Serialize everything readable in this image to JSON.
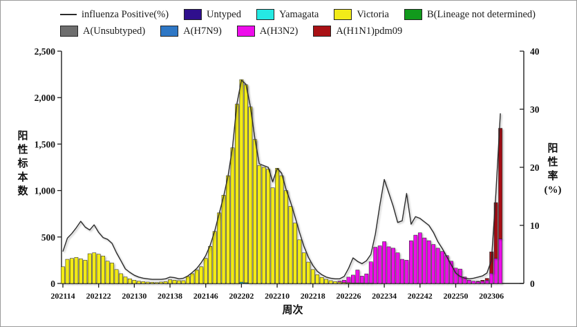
{
  "legend": {
    "items": [
      {
        "row": 1,
        "key": "influenza-positive",
        "label": "influenza Positive(%)",
        "color": "#2a2a2a",
        "swatch": "line"
      },
      {
        "row": 1,
        "key": "untyped",
        "label": "Untyped",
        "color": "#2f0f8d",
        "swatch": "box"
      },
      {
        "row": 1,
        "key": "yamagata",
        "label": "Yamagata",
        "color": "#25e9e3",
        "swatch": "box"
      },
      {
        "row": 1,
        "key": "victoria",
        "label": "Victoria",
        "color": "#f2eb19",
        "swatch": "box"
      },
      {
        "row": 1,
        "key": "b-lineage-not-determined",
        "label": "B(Lineage not determined)",
        "color": "#119a1c",
        "swatch": "box"
      },
      {
        "row": 2,
        "key": "a-unsubtyped",
        "label": "A(Unsubtyped)",
        "color": "#6e6e6e",
        "swatch": "box"
      },
      {
        "row": 2,
        "key": "a-h7n9",
        "label": "A(H7N9)",
        "color": "#2e77c5",
        "swatch": "box"
      },
      {
        "row": 2,
        "key": "a-h3n2",
        "label": "A(H3N2)",
        "color": "#ee0deb",
        "swatch": "box"
      },
      {
        "row": 2,
        "key": "a-h1n1pdm09",
        "label": "A(H1N1)pdm09",
        "color": "#a91115",
        "swatch": "box"
      }
    ]
  },
  "chart_data": {
    "type": "combo-stacked-bar-line",
    "x_axis_title": "周次",
    "left_axis": {
      "title": "阳性标本数",
      "max": 2500,
      "ticks": [
        {
          "value": 0,
          "label": "0"
        },
        {
          "value": 500,
          "label": "500"
        },
        {
          "value": 1000,
          "label": "1,000"
        },
        {
          "value": 1500,
          "label": "1,500"
        },
        {
          "value": 2000,
          "label": "2,000"
        },
        {
          "value": 2500,
          "label": "2,500"
        }
      ]
    },
    "right_axis": {
      "title": "阳性率",
      "unit": "(%)",
      "max": 40,
      "ticks": [
        {
          "value": 0,
          "label": "0"
        },
        {
          "value": 10,
          "label": "10"
        },
        {
          "value": 20,
          "label": "20"
        },
        {
          "value": 30,
          "label": "30"
        },
        {
          "value": 40,
          "label": "40"
        }
      ]
    },
    "x_ticks": [
      {
        "week_index": 0,
        "label": "202114"
      },
      {
        "week_index": 8,
        "label": "202122"
      },
      {
        "week_index": 16,
        "label": "202130"
      },
      {
        "week_index": 24,
        "label": "202138"
      },
      {
        "week_index": 32,
        "label": "202146"
      },
      {
        "week_index": 40,
        "label": "202202"
      },
      {
        "week_index": 48,
        "label": "202210"
      },
      {
        "week_index": 56,
        "label": "202218"
      },
      {
        "week_index": 64,
        "label": "202226"
      },
      {
        "week_index": 72,
        "label": "202234"
      },
      {
        "week_index": 80,
        "label": "202242"
      },
      {
        "week_index": 88,
        "label": "202250"
      },
      {
        "week_index": 96,
        "label": "202306"
      }
    ],
    "weeks": [
      "202114",
      "202115",
      "202116",
      "202117",
      "202118",
      "202119",
      "202120",
      "202121",
      "202122",
      "202123",
      "202124",
      "202125",
      "202126",
      "202127",
      "202128",
      "202129",
      "202130",
      "202131",
      "202132",
      "202133",
      "202134",
      "202135",
      "202136",
      "202137",
      "202138",
      "202139",
      "202140",
      "202141",
      "202142",
      "202143",
      "202144",
      "202145",
      "202146",
      "202147",
      "202148",
      "202149",
      "202150",
      "202151",
      "202152",
      "202201",
      "202202",
      "202203",
      "202204",
      "202205",
      "202206",
      "202207",
      "202208",
      "202209",
      "202210",
      "202211",
      "202212",
      "202213",
      "202214",
      "202215",
      "202216",
      "202217",
      "202218",
      "202219",
      "202220",
      "202221",
      "202222",
      "202223",
      "202224",
      "202225",
      "202226",
      "202227",
      "202228",
      "202229",
      "202230",
      "202231",
      "202232",
      "202233",
      "202234",
      "202235",
      "202236",
      "202237",
      "202238",
      "202239",
      "202240",
      "202241",
      "202242",
      "202243",
      "202244",
      "202245",
      "202246",
      "202247",
      "202248",
      "202249",
      "202250",
      "202251",
      "202252",
      "202301",
      "202302",
      "202303",
      "202304",
      "202305",
      "202306",
      "202307",
      "202308"
    ],
    "bar_series": [
      {
        "name": "Yamagata",
        "key": "yamagata",
        "color": "#25e9e3",
        "values": [
          0,
          0,
          0,
          0,
          0,
          0,
          0,
          0,
          0,
          0,
          0,
          0,
          0,
          0,
          0,
          0,
          0,
          0,
          0,
          0,
          0,
          0,
          0,
          0,
          0,
          0,
          0,
          0,
          0,
          0,
          0,
          0,
          0,
          0,
          0,
          0,
          0,
          0,
          0,
          0,
          14,
          8,
          0,
          0,
          0,
          0,
          0,
          0,
          0,
          0,
          0,
          0,
          0,
          0,
          0,
          0,
          0,
          0,
          0,
          0,
          0,
          0,
          0,
          0,
          0,
          0,
          0,
          0,
          0,
          0,
          0,
          0,
          0,
          0,
          0,
          0,
          0,
          0,
          0,
          0,
          0,
          0,
          0,
          0,
          0,
          0,
          0,
          0,
          0,
          0,
          0,
          0,
          0,
          0,
          0,
          0,
          0,
          0,
          0
        ]
      },
      {
        "name": "Victoria",
        "key": "victoria",
        "color": "#f2eb19",
        "values": [
          180,
          260,
          270,
          280,
          265,
          250,
          320,
          330,
          315,
          295,
          240,
          220,
          150,
          105,
          70,
          50,
          35,
          25,
          20,
          15,
          12,
          10,
          15,
          20,
          40,
          35,
          30,
          30,
          75,
          105,
          145,
          180,
          270,
          400,
          560,
          760,
          950,
          1160,
          1460,
          1930,
          2180,
          2130,
          1900,
          1550,
          1270,
          1250,
          1230,
          1030,
          1240,
          1160,
          1000,
          830,
          650,
          470,
          330,
          230,
          150,
          95,
          65,
          45,
          30,
          20,
          15,
          10,
          8,
          5,
          5,
          4,
          3,
          3,
          0,
          0,
          0,
          0,
          0,
          0,
          0,
          0,
          0,
          0,
          0,
          0,
          0,
          0,
          0,
          0,
          0,
          0,
          0,
          0,
          0,
          0,
          0,
          0,
          0,
          0,
          0,
          0,
          0
        ]
      },
      {
        "name": "A(H3N2)",
        "key": "a-h3n2",
        "color": "#ee0deb",
        "values": [
          0,
          0,
          0,
          0,
          0,
          0,
          0,
          0,
          0,
          0,
          0,
          0,
          0,
          0,
          0,
          0,
          0,
          0,
          0,
          0,
          0,
          0,
          0,
          0,
          0,
          0,
          0,
          0,
          0,
          0,
          0,
          0,
          0,
          0,
          0,
          0,
          0,
          0,
          0,
          0,
          0,
          0,
          0,
          0,
          0,
          0,
          0,
          0,
          0,
          0,
          0,
          0,
          0,
          0,
          0,
          0,
          0,
          0,
          0,
          0,
          0,
          0,
          10,
          25,
          60,
          85,
          140,
          75,
          100,
          230,
          390,
          405,
          450,
          395,
          380,
          330,
          260,
          250,
          460,
          520,
          545,
          490,
          460,
          420,
          380,
          345,
          300,
          240,
          165,
          155,
          70,
          35,
          25,
          20,
          25,
          35,
          110,
          270,
          480
        ]
      },
      {
        "name": "A(H1N1)pdm09",
        "key": "a-h1n1pdm09",
        "color": "#a91115",
        "values": [
          0,
          0,
          0,
          0,
          0,
          0,
          0,
          0,
          0,
          0,
          0,
          0,
          0,
          0,
          0,
          0,
          0,
          0,
          0,
          0,
          0,
          0,
          0,
          0,
          0,
          0,
          0,
          0,
          0,
          0,
          0,
          0,
          0,
          0,
          0,
          0,
          0,
          0,
          0,
          0,
          0,
          0,
          0,
          0,
          0,
          0,
          0,
          0,
          0,
          0,
          0,
          0,
          0,
          0,
          0,
          0,
          0,
          0,
          0,
          0,
          0,
          0,
          0,
          0,
          0,
          0,
          0,
          0,
          0,
          0,
          0,
          0,
          0,
          0,
          0,
          0,
          0,
          0,
          0,
          0,
          0,
          0,
          0,
          0,
          0,
          0,
          0,
          0,
          0,
          0,
          0,
          0,
          0,
          5,
          10,
          20,
          230,
          600,
          1190
        ]
      }
    ],
    "line_series": {
      "name": "influenza Positive(%)",
      "key": "influenza-positive",
      "color": "#2a2a2a",
      "values": [
        5.5,
        7.8,
        8.6,
        9.6,
        10.7,
        9.7,
        9.2,
        10.1,
        8.8,
        7.9,
        7.6,
        6.9,
        5.3,
        3.9,
        2.5,
        1.9,
        1.4,
        1.1,
        0.9,
        0.8,
        0.7,
        0.7,
        0.7,
        0.8,
        1.1,
        1.0,
        0.8,
        0.9,
        1.3,
        1.9,
        2.6,
        3.6,
        4.8,
        6.6,
        9.0,
        12.0,
        15.0,
        18.5,
        23.5,
        31.0,
        35.0,
        34.3,
        30.5,
        25.0,
        20.6,
        20.3,
        20.0,
        17.5,
        19.8,
        19.0,
        16.2,
        14.0,
        11.5,
        8.8,
        6.4,
        4.5,
        3.1,
        2.1,
        1.5,
        1.1,
        0.9,
        0.8,
        0.8,
        1.2,
        2.6,
        4.4,
        3.8,
        3.4,
        3.9,
        5.0,
        8.5,
        13.5,
        17.9,
        15.6,
        13.3,
        10.5,
        10.8,
        15.5,
        10.2,
        11.5,
        11.2,
        10.6,
        10.0,
        8.8,
        7.2,
        6.0,
        4.6,
        3.2,
        1.8,
        1.2,
        0.9,
        0.8,
        0.9,
        1.1,
        1.3,
        1.8,
        4.0,
        15.5,
        29.3
      ]
    }
  }
}
